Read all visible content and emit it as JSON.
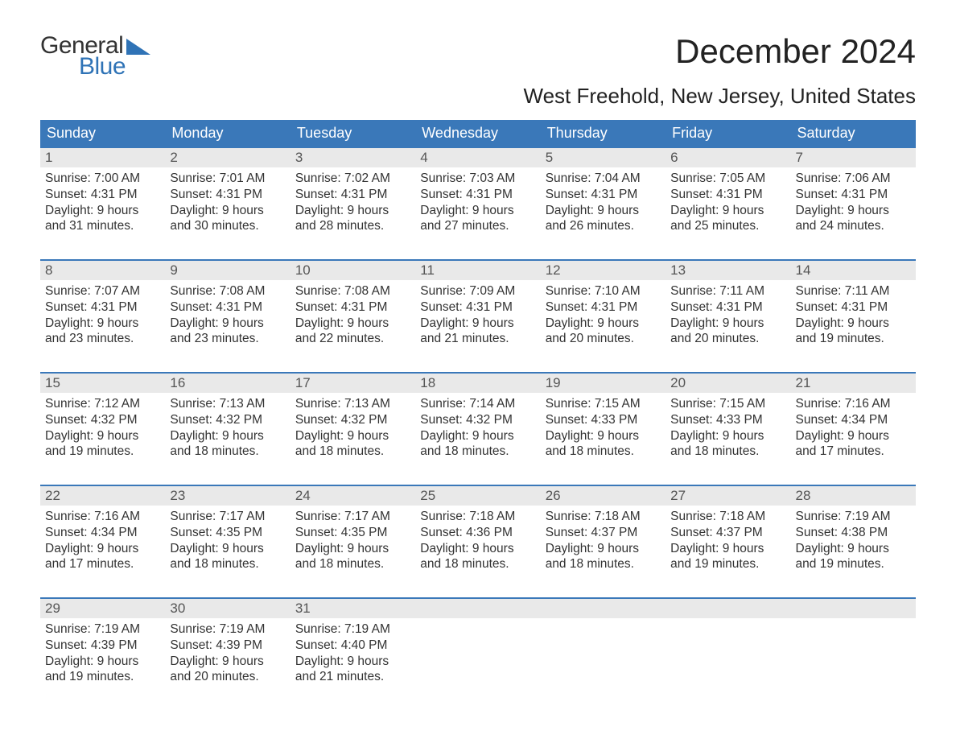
{
  "brand": {
    "word1": "General",
    "word2": "Blue"
  },
  "title": "December 2024",
  "subtitle": "West Freehold, New Jersey, United States",
  "colors": {
    "header_bg": "#3a78b9",
    "header_text": "#ffffff",
    "daynum_bg": "#e9e9e9",
    "daynum_text": "#555555",
    "body_text": "#333333",
    "accent": "#2f73b6",
    "page_bg": "#ffffff"
  },
  "fontsizes": {
    "title": 42,
    "subtitle": 26,
    "dow": 18,
    "daynum": 17,
    "body": 15.5,
    "logo": 30
  },
  "days_of_week": [
    "Sunday",
    "Monday",
    "Tuesday",
    "Wednesday",
    "Thursday",
    "Friday",
    "Saturday"
  ],
  "labels": {
    "sunrise": "Sunrise:",
    "sunset": "Sunset:",
    "daylight": "Daylight:"
  },
  "weeks": [
    [
      {
        "n": 1,
        "sr": "7:00 AM",
        "ss": "4:31 PM",
        "dl": "9 hours and 31 minutes."
      },
      {
        "n": 2,
        "sr": "7:01 AM",
        "ss": "4:31 PM",
        "dl": "9 hours and 30 minutes."
      },
      {
        "n": 3,
        "sr": "7:02 AM",
        "ss": "4:31 PM",
        "dl": "9 hours and 28 minutes."
      },
      {
        "n": 4,
        "sr": "7:03 AM",
        "ss": "4:31 PM",
        "dl": "9 hours and 27 minutes."
      },
      {
        "n": 5,
        "sr": "7:04 AM",
        "ss": "4:31 PM",
        "dl": "9 hours and 26 minutes."
      },
      {
        "n": 6,
        "sr": "7:05 AM",
        "ss": "4:31 PM",
        "dl": "9 hours and 25 minutes."
      },
      {
        "n": 7,
        "sr": "7:06 AM",
        "ss": "4:31 PM",
        "dl": "9 hours and 24 minutes."
      }
    ],
    [
      {
        "n": 8,
        "sr": "7:07 AM",
        "ss": "4:31 PM",
        "dl": "9 hours and 23 minutes."
      },
      {
        "n": 9,
        "sr": "7:08 AM",
        "ss": "4:31 PM",
        "dl": "9 hours and 23 minutes."
      },
      {
        "n": 10,
        "sr": "7:08 AM",
        "ss": "4:31 PM",
        "dl": "9 hours and 22 minutes."
      },
      {
        "n": 11,
        "sr": "7:09 AM",
        "ss": "4:31 PM",
        "dl": "9 hours and 21 minutes."
      },
      {
        "n": 12,
        "sr": "7:10 AM",
        "ss": "4:31 PM",
        "dl": "9 hours and 20 minutes."
      },
      {
        "n": 13,
        "sr": "7:11 AM",
        "ss": "4:31 PM",
        "dl": "9 hours and 20 minutes."
      },
      {
        "n": 14,
        "sr": "7:11 AM",
        "ss": "4:31 PM",
        "dl": "9 hours and 19 minutes."
      }
    ],
    [
      {
        "n": 15,
        "sr": "7:12 AM",
        "ss": "4:32 PM",
        "dl": "9 hours and 19 minutes."
      },
      {
        "n": 16,
        "sr": "7:13 AM",
        "ss": "4:32 PM",
        "dl": "9 hours and 18 minutes."
      },
      {
        "n": 17,
        "sr": "7:13 AM",
        "ss": "4:32 PM",
        "dl": "9 hours and 18 minutes."
      },
      {
        "n": 18,
        "sr": "7:14 AM",
        "ss": "4:32 PM",
        "dl": "9 hours and 18 minutes."
      },
      {
        "n": 19,
        "sr": "7:15 AM",
        "ss": "4:33 PM",
        "dl": "9 hours and 18 minutes."
      },
      {
        "n": 20,
        "sr": "7:15 AM",
        "ss": "4:33 PM",
        "dl": "9 hours and 18 minutes."
      },
      {
        "n": 21,
        "sr": "7:16 AM",
        "ss": "4:34 PM",
        "dl": "9 hours and 17 minutes."
      }
    ],
    [
      {
        "n": 22,
        "sr": "7:16 AM",
        "ss": "4:34 PM",
        "dl": "9 hours and 17 minutes."
      },
      {
        "n": 23,
        "sr": "7:17 AM",
        "ss": "4:35 PM",
        "dl": "9 hours and 18 minutes."
      },
      {
        "n": 24,
        "sr": "7:17 AM",
        "ss": "4:35 PM",
        "dl": "9 hours and 18 minutes."
      },
      {
        "n": 25,
        "sr": "7:18 AM",
        "ss": "4:36 PM",
        "dl": "9 hours and 18 minutes."
      },
      {
        "n": 26,
        "sr": "7:18 AM",
        "ss": "4:37 PM",
        "dl": "9 hours and 18 minutes."
      },
      {
        "n": 27,
        "sr": "7:18 AM",
        "ss": "4:37 PM",
        "dl": "9 hours and 19 minutes."
      },
      {
        "n": 28,
        "sr": "7:19 AM",
        "ss": "4:38 PM",
        "dl": "9 hours and 19 minutes."
      }
    ],
    [
      {
        "n": 29,
        "sr": "7:19 AM",
        "ss": "4:39 PM",
        "dl": "9 hours and 19 minutes."
      },
      {
        "n": 30,
        "sr": "7:19 AM",
        "ss": "4:39 PM",
        "dl": "9 hours and 20 minutes."
      },
      {
        "n": 31,
        "sr": "7:19 AM",
        "ss": "4:40 PM",
        "dl": "9 hours and 21 minutes."
      },
      null,
      null,
      null,
      null
    ]
  ]
}
